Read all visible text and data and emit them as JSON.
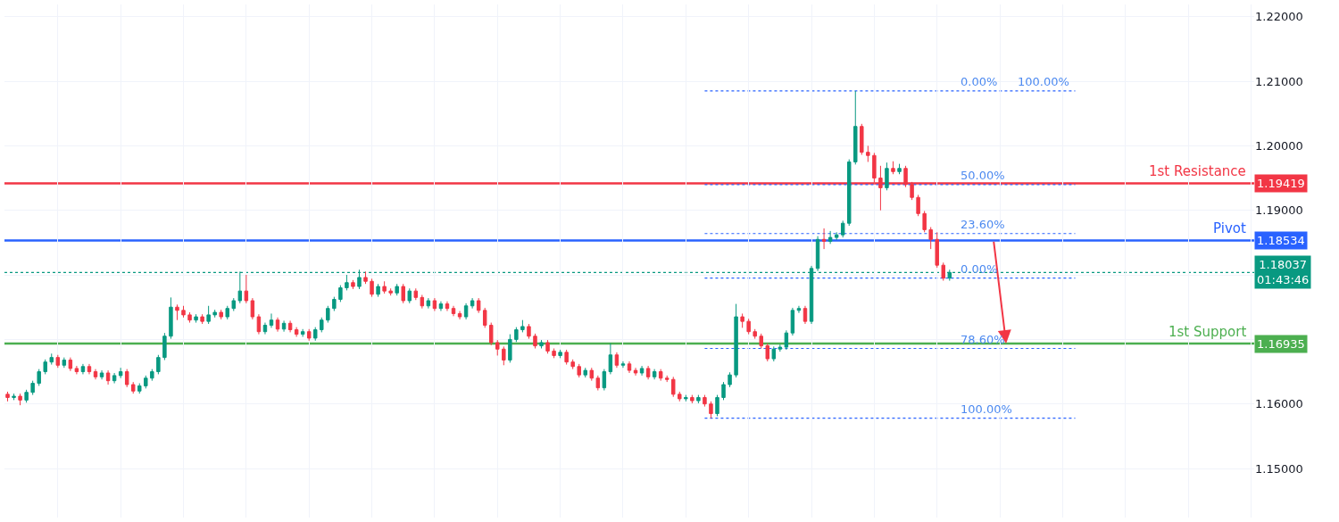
{
  "chart_data": {
    "type": "candlestick",
    "categories": [
      null,
      null,
      null,
      null,
      null,
      null,
      null,
      null,
      null,
      null,
      null,
      null,
      null,
      null,
      null,
      null,
      null,
      null,
      null,
      null,
      null,
      null,
      null,
      null,
      null,
      null,
      null,
      null,
      null,
      null,
      null,
      null,
      null,
      null,
      null,
      null,
      null,
      null,
      null,
      null,
      null,
      null,
      null,
      null,
      null,
      null,
      null,
      null,
      null,
      null,
      null,
      null,
      null,
      null,
      null,
      null,
      null,
      null,
      null,
      null,
      null,
      null,
      null,
      null,
      null,
      null,
      null,
      null,
      null,
      null,
      null,
      null,
      null,
      null,
      null,
      null,
      null,
      null,
      null,
      null,
      null,
      null,
      null,
      null,
      null,
      null,
      null,
      null,
      null,
      null,
      null,
      null,
      null,
      null,
      null,
      null,
      null,
      null,
      null,
      null,
      null,
      null,
      null,
      null,
      null,
      null,
      null,
      null,
      null,
      null,
      null,
      null,
      null,
      null,
      null,
      null,
      null,
      null,
      null,
      null,
      null,
      null,
      null,
      null,
      null,
      null,
      null,
      null,
      null,
      null,
      null,
      null,
      null,
      null,
      null,
      null,
      null,
      null,
      null,
      null,
      null,
      null,
      null,
      null,
      null,
      null,
      null,
      null,
      null,
      null,
      null,
      null,
      null,
      null,
      null,
      null,
      null,
      null,
      null,
      null,
      null,
      null,
      null,
      null,
      null,
      null,
      null,
      null,
      null,
      null,
      null,
      null,
      null,
      null,
      null,
      null,
      null,
      null,
      null,
      null,
      null,
      null,
      null,
      null,
      null,
      null,
      null,
      null,
      null,
      null,
      null,
      null,
      null,
      null,
      null,
      null,
      null,
      null,
      null
    ],
    "ohlc": [
      [
        1.1615,
        1.1619,
        1.1604,
        1.161
      ],
      [
        1.161,
        1.1616,
        1.1606,
        1.1612
      ],
      [
        1.1612,
        1.1616,
        1.1598,
        1.1606
      ],
      [
        1.1606,
        1.1622,
        1.1602,
        1.1618
      ],
      [
        1.1618,
        1.1636,
        1.1614,
        1.1632
      ],
      [
        1.1632,
        1.1654,
        1.1628,
        1.165
      ],
      [
        1.165,
        1.1669,
        1.1646,
        1.1665
      ],
      [
        1.1665,
        1.1678,
        1.1661,
        1.1672
      ],
      [
        1.1672,
        1.1676,
        1.1656,
        1.166
      ],
      [
        1.166,
        1.1672,
        1.1656,
        1.1668
      ],
      [
        1.1668,
        1.1672,
        1.1651,
        1.1655
      ],
      [
        1.1655,
        1.1659,
        1.1646,
        1.165
      ],
      [
        1.165,
        1.1662,
        1.1646,
        1.1658
      ],
      [
        1.1658,
        1.1662,
        1.1646,
        1.165
      ],
      [
        1.165,
        1.1654,
        1.1638,
        1.1642
      ],
      [
        1.1642,
        1.1652,
        1.1638,
        1.1648
      ],
      [
        1.1648,
        1.1652,
        1.163,
        1.1636
      ],
      [
        1.1636,
        1.1648,
        1.1632,
        1.1644
      ],
      [
        1.1644,
        1.1656,
        1.164,
        1.165
      ],
      [
        1.165,
        1.1654,
        1.1626,
        1.163
      ],
      [
        1.163,
        1.1634,
        1.1616,
        1.162
      ],
      [
        1.162,
        1.1632,
        1.1616,
        1.1628
      ],
      [
        1.1628,
        1.1644,
        1.1624,
        1.164
      ],
      [
        1.164,
        1.1654,
        1.1636,
        1.165
      ],
      [
        1.165,
        1.1676,
        1.1646,
        1.1672
      ],
      [
        1.1672,
        1.171,
        1.1668,
        1.1705
      ],
      [
        1.1705,
        1.1765,
        1.1701,
        1.175
      ],
      [
        1.175,
        1.1754,
        1.173,
        1.1745
      ],
      [
        1.1745,
        1.1752,
        1.1734,
        1.1738
      ],
      [
        1.1738,
        1.1742,
        1.1726,
        1.173
      ],
      [
        1.173,
        1.1739,
        1.1726,
        1.1735
      ],
      [
        1.1735,
        1.1739,
        1.1724,
        1.1728
      ],
      [
        1.1728,
        1.1752,
        1.1724,
        1.1738
      ],
      [
        1.1738,
        1.1746,
        1.1734,
        1.1742
      ],
      [
        1.1742,
        1.1746,
        1.1731,
        1.1735
      ],
      [
        1.1735,
        1.1752,
        1.1731,
        1.1748
      ],
      [
        1.1748,
        1.1764,
        1.1744,
        1.176
      ],
      [
        1.176,
        1.1805,
        1.1756,
        1.1775
      ],
      [
        1.1775,
        1.18,
        1.1756,
        1.176
      ],
      [
        1.176,
        1.1764,
        1.1731,
        1.1735
      ],
      [
        1.1735,
        1.1739,
        1.1708,
        1.1712
      ],
      [
        1.1712,
        1.1726,
        1.1708,
        1.1722
      ],
      [
        1.1722,
        1.174,
        1.1718,
        1.173
      ],
      [
        1.173,
        1.1734,
        1.1712,
        1.1716
      ],
      [
        1.1716,
        1.1729,
        1.1712,
        1.1725
      ],
      [
        1.1725,
        1.1729,
        1.1711,
        1.1715
      ],
      [
        1.1715,
        1.1719,
        1.1704,
        1.1708
      ],
      [
        1.1708,
        1.1716,
        1.1704,
        1.1712
      ],
      [
        1.1712,
        1.1716,
        1.1698,
        1.1702
      ],
      [
        1.1702,
        1.1719,
        1.1698,
        1.1715
      ],
      [
        1.1715,
        1.1734,
        1.1711,
        1.173
      ],
      [
        1.173,
        1.1752,
        1.1726,
        1.1748
      ],
      [
        1.1748,
        1.1766,
        1.1744,
        1.1762
      ],
      [
        1.1762,
        1.1784,
        1.1758,
        1.178
      ],
      [
        1.178,
        1.18,
        1.1776,
        1.1788
      ],
      [
        1.1788,
        1.1792,
        1.1778,
        1.1782
      ],
      [
        1.1782,
        1.1808,
        1.1778,
        1.1796
      ],
      [
        1.1796,
        1.1805,
        1.1786,
        1.179
      ],
      [
        1.179,
        1.1794,
        1.1766,
        1.177
      ],
      [
        1.177,
        1.1786,
        1.1766,
        1.1782
      ],
      [
        1.1782,
        1.179,
        1.1771,
        1.1775
      ],
      [
        1.1775,
        1.1779,
        1.1768,
        1.1772
      ],
      [
        1.1772,
        1.1786,
        1.1768,
        1.1782
      ],
      [
        1.1782,
        1.1786,
        1.1756,
        1.176
      ],
      [
        1.176,
        1.1779,
        1.1756,
        1.1775
      ],
      [
        1.1775,
        1.1779,
        1.1761,
        1.1765
      ],
      [
        1.1765,
        1.1769,
        1.1748,
        1.1752
      ],
      [
        1.1752,
        1.1764,
        1.1748,
        1.176
      ],
      [
        1.176,
        1.1764,
        1.1744,
        1.1748
      ],
      [
        1.1748,
        1.1759,
        1.1744,
        1.1755
      ],
      [
        1.1755,
        1.1759,
        1.1744,
        1.1748
      ],
      [
        1.1748,
        1.1752,
        1.1736,
        1.174
      ],
      [
        1.174,
        1.1744,
        1.1731,
        1.1735
      ],
      [
        1.1735,
        1.1756,
        1.1731,
        1.1752
      ],
      [
        1.1752,
        1.1764,
        1.1748,
        1.176
      ],
      [
        1.176,
        1.1764,
        1.1741,
        1.1745
      ],
      [
        1.1745,
        1.1749,
        1.1718,
        1.1722
      ],
      [
        1.1722,
        1.1726,
        1.1691,
        1.1695
      ],
      [
        1.1695,
        1.1699,
        1.1675,
        1.1685
      ],
      [
        1.1685,
        1.1689,
        1.166,
        1.1668
      ],
      [
        1.1668,
        1.1708,
        1.1664,
        1.17
      ],
      [
        1.17,
        1.1719,
        1.1696,
        1.1715
      ],
      [
        1.1715,
        1.173,
        1.1711,
        1.172
      ],
      [
        1.172,
        1.1724,
        1.1701,
        1.1705
      ],
      [
        1.1705,
        1.1709,
        1.1686,
        1.169
      ],
      [
        1.169,
        1.1699,
        1.1686,
        1.1695
      ],
      [
        1.1695,
        1.1699,
        1.1678,
        1.1682
      ],
      [
        1.1682,
        1.1686,
        1.1671,
        1.1675
      ],
      [
        1.1675,
        1.1684,
        1.1671,
        1.168
      ],
      [
        1.168,
        1.1684,
        1.1661,
        1.1665
      ],
      [
        1.1665,
        1.1669,
        1.1654,
        1.1658
      ],
      [
        1.1658,
        1.1662,
        1.1641,
        1.1645
      ],
      [
        1.1645,
        1.1656,
        1.1641,
        1.1652
      ],
      [
        1.1652,
        1.1656,
        1.1636,
        1.164
      ],
      [
        1.164,
        1.1644,
        1.1621,
        1.1625
      ],
      [
        1.1625,
        1.1654,
        1.1621,
        1.165
      ],
      [
        1.165,
        1.1694,
        1.1646,
        1.1676
      ],
      [
        1.1676,
        1.168,
        1.1656,
        1.166
      ],
      [
        1.166,
        1.1666,
        1.1656,
        1.1662
      ],
      [
        1.1662,
        1.1666,
        1.1648,
        1.1652
      ],
      [
        1.1652,
        1.1656,
        1.1644,
        1.1648
      ],
      [
        1.1648,
        1.1659,
        1.1644,
        1.1655
      ],
      [
        1.1655,
        1.1659,
        1.1638,
        1.1642
      ],
      [
        1.1642,
        1.1654,
        1.1638,
        1.165
      ],
      [
        1.165,
        1.1654,
        1.1636,
        1.164
      ],
      [
        1.164,
        1.1644,
        1.1634,
        1.1638
      ],
      [
        1.1638,
        1.1642,
        1.1611,
        1.1615
      ],
      [
        1.1615,
        1.1619,
        1.1604,
        1.1608
      ],
      [
        1.1608,
        1.1614,
        1.1604,
        1.161
      ],
      [
        1.161,
        1.1614,
        1.1601,
        1.1605
      ],
      [
        1.1605,
        1.1614,
        1.1601,
        1.161
      ],
      [
        1.161,
        1.1614,
        1.1596,
        1.16
      ],
      [
        1.16,
        1.1604,
        1.1578,
        1.1585
      ],
      [
        1.1585,
        1.1614,
        1.1581,
        1.161
      ],
      [
        1.161,
        1.1634,
        1.1606,
        1.163
      ],
      [
        1.163,
        1.1649,
        1.1626,
        1.1645
      ],
      [
        1.1645,
        1.1755,
        1.1641,
        1.1735
      ],
      [
        1.1735,
        1.174,
        1.1718,
        1.1728
      ],
      [
        1.1728,
        1.1732,
        1.1708,
        1.1712
      ],
      [
        1.1712,
        1.1716,
        1.1701,
        1.1705
      ],
      [
        1.1705,
        1.1709,
        1.1686,
        1.169
      ],
      [
        1.169,
        1.1694,
        1.1666,
        1.167
      ],
      [
        1.167,
        1.1689,
        1.1666,
        1.1685
      ],
      [
        1.1685,
        1.1692,
        1.1681,
        1.1688
      ],
      [
        1.1688,
        1.1714,
        1.1684,
        1.171
      ],
      [
        1.171,
        1.1749,
        1.1706,
        1.1745
      ],
      [
        1.1745,
        1.1752,
        1.1741,
        1.1748
      ],
      [
        1.1748,
        1.1752,
        1.1724,
        1.1728
      ],
      [
        1.1728,
        1.1814,
        1.1724,
        1.181
      ],
      [
        1.181,
        1.186,
        1.1806,
        1.1855
      ],
      [
        1.1855,
        1.1872,
        1.184,
        1.1852
      ],
      [
        1.1852,
        1.1868,
        1.1848,
        1.1858
      ],
      [
        1.1858,
        1.1866,
        1.1854,
        1.1862
      ],
      [
        1.1862,
        1.1884,
        1.1858,
        1.188
      ],
      [
        1.188,
        1.1979,
        1.1876,
        1.1975
      ],
      [
        1.1975,
        1.2085,
        1.1971,
        1.203
      ],
      [
        1.203,
        1.2034,
        1.1986,
        1.199
      ],
      [
        1.199,
        1.2,
        1.1975,
        1.1985
      ],
      [
        1.1985,
        1.1989,
        1.194,
        1.195
      ],
      [
        1.195,
        1.1969,
        1.19,
        1.1935
      ],
      [
        1.1935,
        1.1974,
        1.1931,
        1.1965
      ],
      [
        1.1965,
        1.1976,
        1.1956,
        1.196
      ],
      [
        1.196,
        1.1972,
        1.1956,
        1.1965
      ],
      [
        1.1965,
        1.1969,
        1.1936,
        1.194
      ],
      [
        1.194,
        1.1944,
        1.1916,
        1.192
      ],
      [
        1.192,
        1.1924,
        1.1891,
        1.1895
      ],
      [
        1.1895,
        1.1899,
        1.1866,
        1.187
      ],
      [
        1.187,
        1.1874,
        1.184,
        1.1855
      ],
      [
        1.1855,
        1.1866,
        1.1811,
        1.1815
      ],
      [
        1.1815,
        1.1819,
        1.1791,
        1.1795
      ],
      [
        1.1795,
        1.1808,
        1.1791,
        1.18037
      ],
      null,
      null,
      null,
      null,
      null,
      null,
      null,
      null,
      null,
      null,
      null,
      null,
      null,
      null,
      null,
      null,
      null,
      null,
      null,
      null,
      null,
      null,
      null,
      null,
      null,
      null,
      null,
      null,
      null,
      null,
      null,
      null,
      null,
      null,
      null,
      null,
      null,
      null,
      null,
      null,
      null,
      null,
      null,
      null,
      null,
      null,
      null,
      null
    ],
    "ylim": [
      1.1424,
      1.2219
    ],
    "yticks": [
      {
        "value": 1.15,
        "label": "1.15000"
      },
      {
        "value": 1.16,
        "label": "1.16000"
      },
      {
        "value": 1.16935,
        "label": "1.16935"
      },
      {
        "value": 1.17,
        "label": null
      },
      {
        "value": 1.18,
        "label": null
      },
      {
        "value": 1.18037,
        "label": "1.18037\n01:43:46"
      },
      {
        "value": 1.18534,
        "label": "1.18534"
      },
      {
        "value": 1.19,
        "label": "1.19000"
      },
      {
        "value": 1.19419,
        "label": "1.19419"
      },
      {
        "value": 1.2,
        "label": "1.20000"
      },
      {
        "value": 1.21,
        "label": "1.21000"
      },
      {
        "value": 1.22,
        "label": "1.22000"
      }
    ],
    "tick_labels": "y",
    "grid": true,
    "ref_lines": [
      {
        "axis": "y",
        "value": 1.19419,
        "label": "1st Resistance",
        "color": "#f23645",
        "line_style": "solid"
      },
      {
        "axis": "y",
        "value": 1.18534,
        "label": "Pivot",
        "color": "#2962ff",
        "line_style": "solid"
      },
      {
        "axis": "y",
        "value": 1.16935,
        "label": "1st Support",
        "color": "#4caf50",
        "line_style": "solid"
      },
      {
        "axis": "y",
        "value": 1.18037,
        "color": "#089981",
        "line_style": "dotted"
      },
      {
        "axis": "y",
        "value": 1.2085,
        "color": "#2962ff",
        "line_style": "dotted"
      },
      {
        "axis": "y",
        "value": 1.1686,
        "color": "#2962ff",
        "line_style": "dotted"
      },
      {
        "axis": "y",
        "value": 1.1578,
        "color": "#2962ff",
        "line_style": "dotted"
      },
      {
        "axis": "y",
        "value": 1.194,
        "color": "#2962ff",
        "line_style": "dotted"
      },
      {
        "axis": "y",
        "value": 1.1864,
        "color": "#2962ff",
        "line_style": "dotted"
      },
      {
        "axis": "y",
        "value": 1.1795,
        "color": "#2962ff",
        "line_style": "dotted"
      }
    ],
    "annotations": [
      {
        "text": "0.00%",
        "y": 1.2085
      },
      {
        "text": "78.60%",
        "y": 1.1686
      },
      {
        "text": "100.00%",
        "y": 1.1578
      },
      {
        "text": "100.00%",
        "y": 1.2085
      },
      {
        "text": "50.00%",
        "y": 1.194
      },
      {
        "text": "23.60%",
        "y": 1.1864
      },
      {
        "text": "0.00%",
        "y": 1.1795
      }
    ]
  }
}
